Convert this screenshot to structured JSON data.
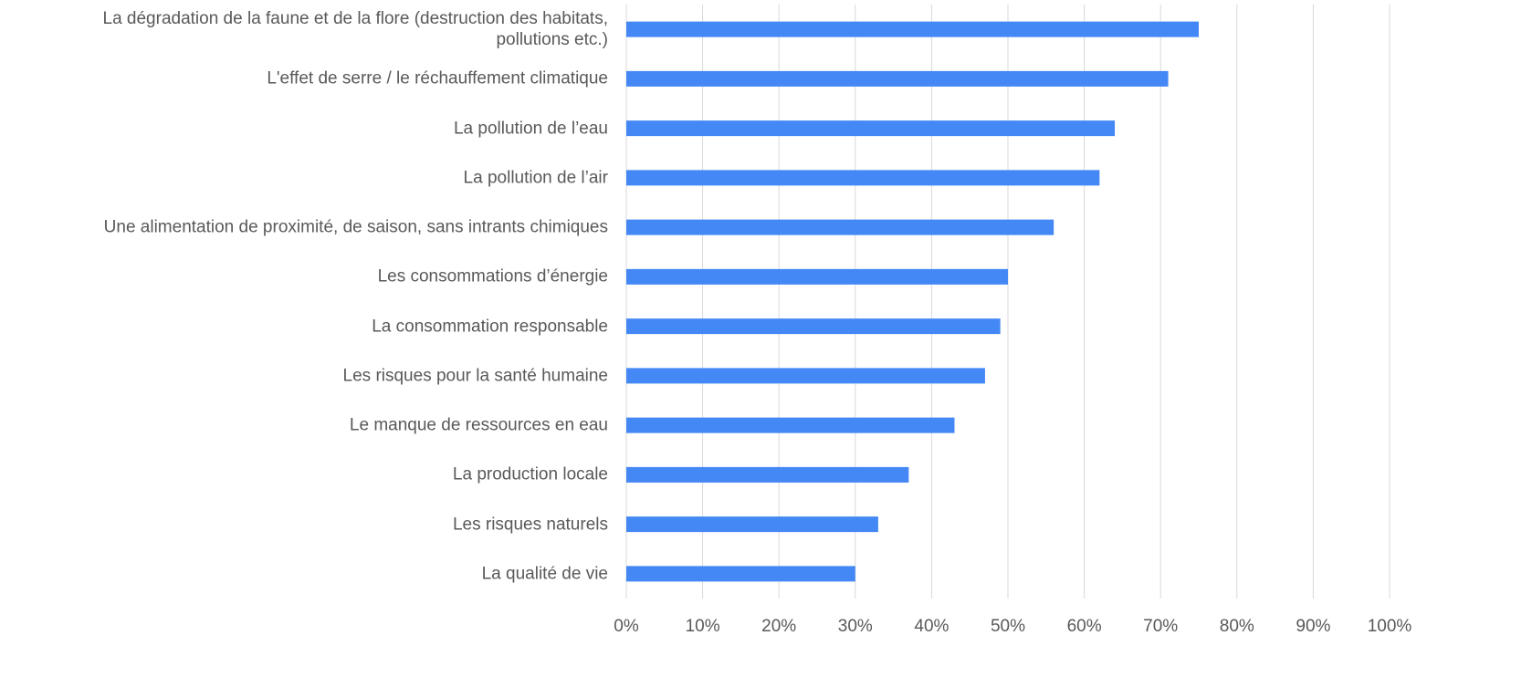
{
  "chart_data": {
    "type": "barh",
    "categories": [
      "La dégradation de la faune et de la flore (destruction des habitats,\npollutions etc.)",
      "L'effet de serre / le réchauffement climatique",
      "La pollution de l’eau",
      "La pollution de l’air",
      "Une alimentation de proximité, de saison, sans intrants chimiques",
      "Les consommations d’énergie",
      "La consommation responsable",
      "Les risques pour la santé humaine",
      "Le manque de ressources en eau",
      "La production locale",
      "Les risques naturels",
      "La qualité de vie"
    ],
    "values": [
      75,
      71,
      64,
      62,
      56,
      50,
      49,
      47,
      43,
      37,
      33,
      30
    ],
    "color": "#4488f5",
    "xlim": [
      0,
      100
    ],
    "xticks": [
      {
        "value": 0,
        "label": "0%"
      },
      {
        "value": 10,
        "label": "10%"
      },
      {
        "value": 20,
        "label": "20%"
      },
      {
        "value": 30,
        "label": "30%"
      },
      {
        "value": 40,
        "label": "40%"
      },
      {
        "value": 50,
        "label": "50%"
      },
      {
        "value": 60,
        "label": "60%"
      },
      {
        "value": 70,
        "label": "70%"
      },
      {
        "value": 80,
        "label": "80%"
      },
      {
        "value": 90,
        "label": "90%"
      },
      {
        "value": 100,
        "label": "100%"
      }
    ],
    "grid": true
  }
}
